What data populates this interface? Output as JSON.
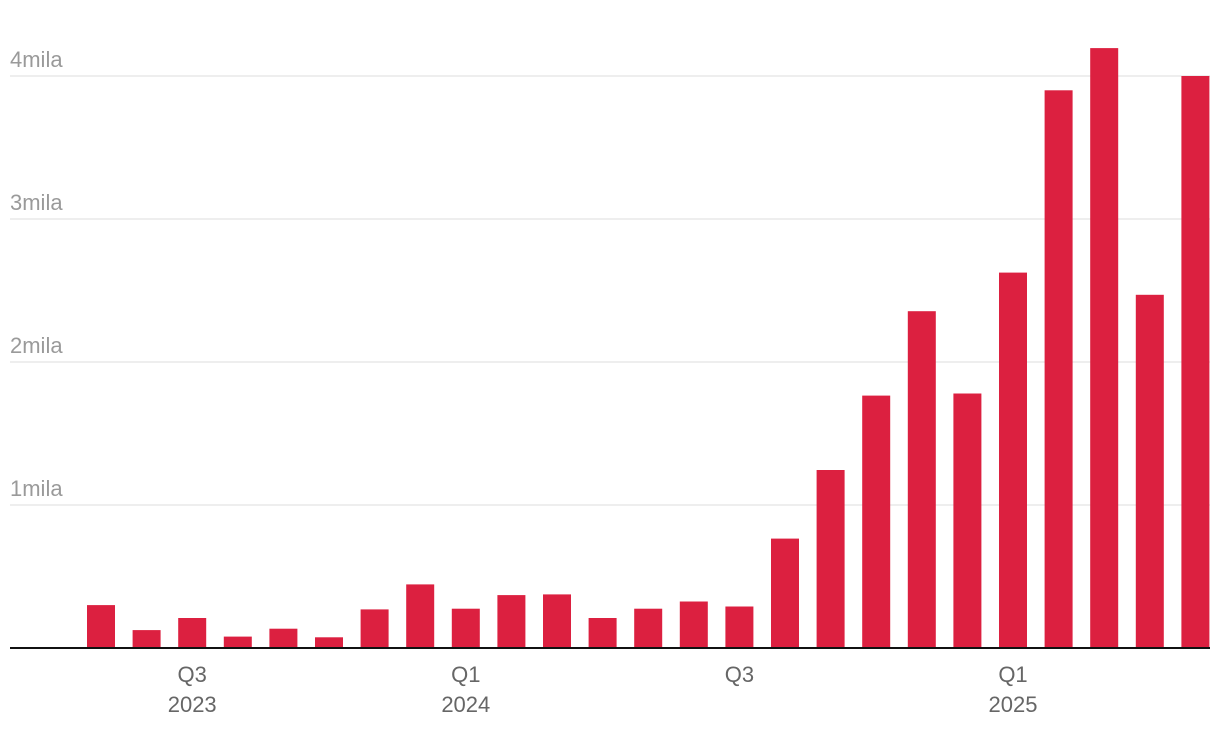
{
  "chart_data": {
    "type": "bar",
    "bar_color": "#dc2040",
    "grid": true,
    "legend": "none",
    "ylim": [
      0,
      4200
    ],
    "y_ticks": [
      {
        "value": 1000,
        "label": "1mila"
      },
      {
        "value": 2000,
        "label": "2mila"
      },
      {
        "value": 3000,
        "label": "3mila"
      },
      {
        "value": 4000,
        "label": "4mila"
      }
    ],
    "x_ticks": [
      {
        "index": 2,
        "label": "Q3",
        "sublabel": "2023"
      },
      {
        "index": 8,
        "label": "Q1",
        "sublabel": "2024"
      },
      {
        "index": 14,
        "label": "Q3",
        "sublabel": ""
      },
      {
        "index": 20,
        "label": "Q1",
        "sublabel": "2025"
      }
    ],
    "values": [
      300,
      125,
      210,
      80,
      135,
      75,
      270,
      445,
      275,
      370,
      375,
      210,
      275,
      325,
      290,
      765,
      1245,
      1765,
      2355,
      1780,
      2625,
      3900,
      4195,
      2470,
      4000
    ]
  }
}
